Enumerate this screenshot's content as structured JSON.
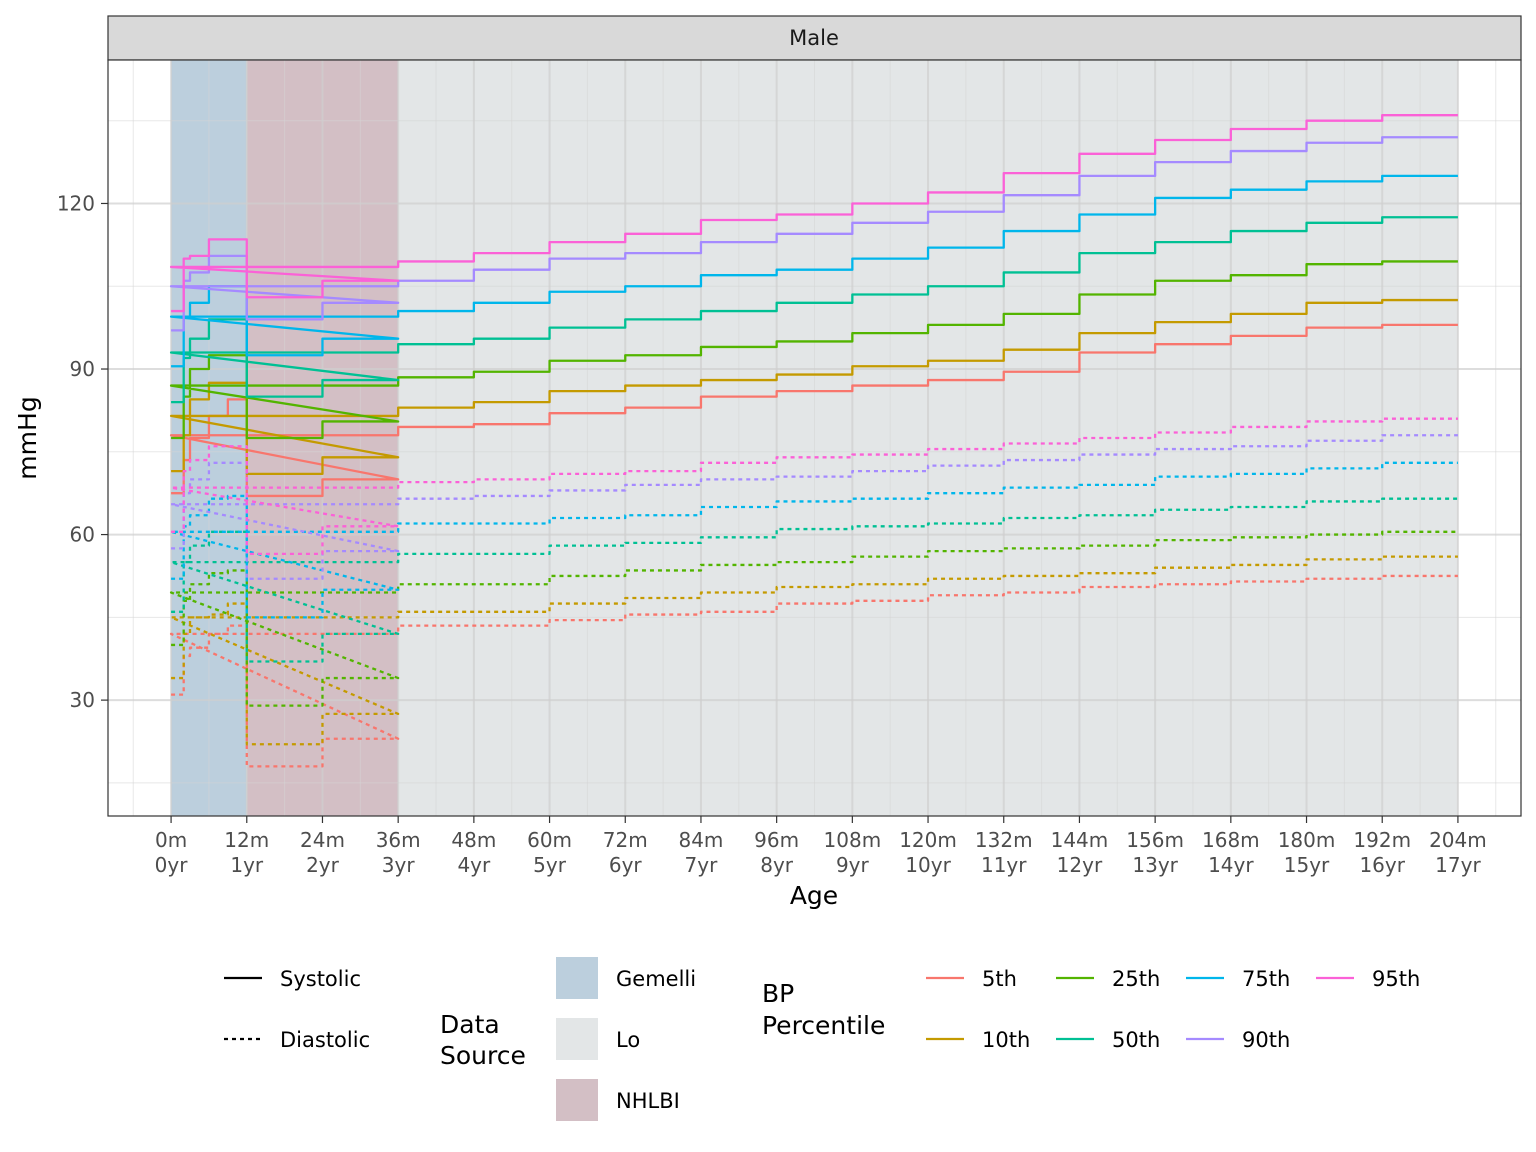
{
  "chart_data": {
    "type": "line",
    "facet": "Male",
    "xlabel": "Age",
    "ylabel": "mmHg",
    "x_unit": "months",
    "xlim": [
      -10,
      214
    ],
    "ylim": [
      9,
      146
    ],
    "y_ticks": [
      30,
      60,
      90,
      120
    ],
    "x_ticks": [
      {
        "value": 0,
        "line1": "0m",
        "line2": "0yr"
      },
      {
        "value": 12,
        "line1": "12m",
        "line2": "1yr"
      },
      {
        "value": 24,
        "line1": "24m",
        "line2": "2yr"
      },
      {
        "value": 36,
        "line1": "36m",
        "line2": "3yr"
      },
      {
        "value": 48,
        "line1": "48m",
        "line2": "4yr"
      },
      {
        "value": 60,
        "line1": "60m",
        "line2": "5yr"
      },
      {
        "value": 72,
        "line1": "72m",
        "line2": "6yr"
      },
      {
        "value": 84,
        "line1": "84m",
        "line2": "7yr"
      },
      {
        "value": 96,
        "line1": "96m",
        "line2": "8yr"
      },
      {
        "value": 108,
        "line1": "108m",
        "line2": "9yr"
      },
      {
        "value": 120,
        "line1": "120m",
        "line2": "10yr"
      },
      {
        "value": 132,
        "line1": "132m",
        "line2": "11yr"
      },
      {
        "value": 144,
        "line1": "144m",
        "line2": "12yr"
      },
      {
        "value": 156,
        "line1": "156m",
        "line2": "13yr"
      },
      {
        "value": 168,
        "line1": "168m",
        "line2": "14yr"
      },
      {
        "value": 180,
        "line1": "180m",
        "line2": "15yr"
      },
      {
        "value": 192,
        "line1": "192m",
        "line2": "16yr"
      },
      {
        "value": 204,
        "line1": "204m",
        "line2": "17yr"
      }
    ],
    "grid": true,
    "data_sources": [
      {
        "name": "Gemelli",
        "color": "#bccfdd",
        "from": 0,
        "to": 12
      },
      {
        "name": "NHLBI",
        "color": "#d3bfc5",
        "from": 12,
        "to": 36
      },
      {
        "name": "Lo",
        "color": "#e3e6e7",
        "from": 36,
        "to": 204
      }
    ],
    "step_starts": [
      0,
      36,
      48,
      60,
      72,
      84,
      96,
      108,
      120,
      132,
      144,
      156,
      168,
      180,
      192,
      204
    ],
    "gemelli_steps": [
      0,
      2,
      3,
      6,
      9,
      12
    ],
    "series": [
      {
        "percentile": "5th",
        "type": "Systolic",
        "color": "#f8766d",
        "gemelli": [
          67.5,
          73.5,
          77.5,
          81.5,
          84.5
        ],
        "nhlbi": [
          67,
          70
        ],
        "lo": [
          78,
          79.5,
          80,
          82,
          83,
          85,
          86,
          87,
          88,
          89.5,
          93,
          94.5,
          96,
          97.5,
          98
        ]
      },
      {
        "percentile": "10th",
        "type": "Systolic",
        "color": "#c49a00",
        "gemelli": [
          71.5,
          78,
          84.5,
          87.5,
          87.5
        ],
        "nhlbi": [
          71,
          74
        ],
        "lo": [
          81.5,
          83,
          84,
          86,
          87,
          88,
          89,
          90.5,
          91.5,
          93.5,
          96.5,
          98.5,
          100,
          102,
          102.5
        ]
      },
      {
        "percentile": "25th",
        "type": "Systolic",
        "color": "#53b400",
        "gemelli": [
          77.5,
          85,
          90,
          92.5,
          92.5
        ],
        "nhlbi": [
          77.5,
          80.5
        ],
        "lo": [
          87,
          88.5,
          89.5,
          91.5,
          92.5,
          94,
          95,
          96.5,
          98,
          100,
          103.5,
          106,
          107,
          109,
          109.5
        ]
      },
      {
        "percentile": "50th",
        "type": "Systolic",
        "color": "#00c094",
        "gemelli": [
          84,
          92,
          95.5,
          99,
          99
        ],
        "nhlbi": [
          85,
          88
        ],
        "lo": [
          93,
          94.5,
          95.5,
          97.5,
          99,
          100.5,
          102,
          103.5,
          105,
          107.5,
          111,
          113,
          115,
          116.5,
          117.5
        ]
      },
      {
        "percentile": "75th",
        "type": "Systolic",
        "color": "#00b6eb",
        "gemelli": [
          90.5,
          99.5,
          102,
          105,
          105
        ],
        "nhlbi": [
          92.5,
          95.5
        ],
        "lo": [
          99.5,
          100.5,
          102,
          104,
          105,
          107,
          108,
          110,
          112,
          115,
          118,
          121,
          122.5,
          124,
          125
        ]
      },
      {
        "percentile": "90th",
        "type": "Systolic",
        "color": "#a58aff",
        "gemelli": [
          97,
          106,
          107.5,
          110.5,
          110.5
        ],
        "nhlbi": [
          99,
          102
        ],
        "lo": [
          105,
          106,
          108,
          110,
          111,
          113,
          114.5,
          116.5,
          118.5,
          121.5,
          125,
          127.5,
          129.5,
          131,
          132
        ]
      },
      {
        "percentile": "95th",
        "type": "Systolic",
        "color": "#fb61d7",
        "gemelli": [
          100.5,
          110,
          110.5,
          113.5,
          113.5
        ],
        "nhlbi": [
          103,
          106
        ],
        "lo": [
          108.5,
          109.5,
          111,
          113,
          114.5,
          117,
          118,
          120,
          122,
          125.5,
          129,
          131.5,
          133.5,
          135,
          136
        ]
      },
      {
        "percentile": "5th",
        "type": "Diastolic",
        "color": "#f8766d",
        "gemelli": [
          31,
          38,
          39.5,
          42,
          43.5
        ],
        "nhlbi": [
          18,
          23
        ],
        "lo": [
          42,
          43.5,
          43.5,
          44.5,
          45.5,
          46,
          47.5,
          48,
          49,
          49.5,
          50.5,
          51,
          51.5,
          52,
          52.5
        ]
      },
      {
        "percentile": "10th",
        "type": "Diastolic",
        "color": "#c49a00",
        "gemelli": [
          34,
          42,
          45,
          45.5,
          47.5
        ],
        "nhlbi": [
          22,
          27.5
        ],
        "lo": [
          45,
          46,
          46,
          47.5,
          48.5,
          49.5,
          50.5,
          51,
          52,
          52.5,
          53,
          54,
          54.5,
          55.5,
          56
        ]
      },
      {
        "percentile": "25th",
        "type": "Diastolic",
        "color": "#53b400",
        "gemelli": [
          40,
          48,
          51,
          53,
          53.5
        ],
        "nhlbi": [
          29,
          34
        ],
        "lo": [
          49.5,
          51,
          51,
          52.5,
          53.5,
          54.5,
          55,
          56,
          57,
          57.5,
          58,
          59,
          59.5,
          60,
          60.5
        ]
      },
      {
        "percentile": "50th",
        "type": "Diastolic",
        "color": "#00c094",
        "gemelli": [
          46,
          55,
          58,
          60.5,
          60.5
        ],
        "nhlbi": [
          37,
          42
        ],
        "lo": [
          55,
          56.5,
          56.5,
          58,
          58.5,
          59.5,
          61,
          61.5,
          62,
          63,
          63.5,
          64.5,
          65,
          66,
          66.5
        ]
      },
      {
        "percentile": "75th",
        "type": "Diastolic",
        "color": "#00b6eb",
        "gemelli": [
          52,
          61.5,
          63.5,
          66.5,
          67
        ],
        "nhlbi": [
          45,
          50
        ],
        "lo": [
          60.5,
          62,
          62,
          63,
          63.5,
          65,
          66,
          66.5,
          67.5,
          68.5,
          69,
          70.5,
          71,
          72,
          73
        ]
      },
      {
        "percentile": "90th",
        "type": "Diastolic",
        "color": "#a58aff",
        "gemelli": [
          57.5,
          67.5,
          70,
          73,
          73
        ],
        "nhlbi": [
          52,
          57
        ],
        "lo": [
          65.5,
          66.5,
          67,
          68,
          69,
          70,
          70.5,
          71.5,
          72.5,
          73.5,
          74.5,
          75.5,
          76,
          77,
          78
        ]
      },
      {
        "percentile": "95th",
        "type": "Diastolic",
        "color": "#fb61d7",
        "gemelli": [
          60.5,
          71.5,
          73.5,
          76,
          76
        ],
        "nhlbi": [
          56.5,
          61.5
        ],
        "lo": [
          68.5,
          69.5,
          70,
          71,
          71.5,
          73,
          74,
          74.5,
          75.5,
          76.5,
          77.5,
          78.5,
          79.5,
          80.5,
          81
        ]
      }
    ],
    "legend": {
      "placement": "bottom",
      "linetype": [
        {
          "label": "Systolic",
          "dash": "solid"
        },
        {
          "label": "Diastolic",
          "dash": "dashed"
        }
      ],
      "source_title_1": "Data",
      "source_title_2": "Source",
      "sources": [
        {
          "label": "Gemelli",
          "color": "#bccfdd"
        },
        {
          "label": "Lo",
          "color": "#e3e6e7"
        },
        {
          "label": "NHLBI",
          "color": "#d3bfc5"
        }
      ],
      "pct_title_1": "BP",
      "pct_title_2": "Percentile",
      "percentiles": [
        {
          "label": "5th",
          "color": "#f8766d"
        },
        {
          "label": "10th",
          "color": "#c49a00"
        },
        {
          "label": "25th",
          "color": "#53b400"
        },
        {
          "label": "50th",
          "color": "#00c094"
        },
        {
          "label": "75th",
          "color": "#00b6eb"
        },
        {
          "label": "90th",
          "color": "#a58aff"
        },
        {
          "label": "95th",
          "color": "#fb61d7"
        }
      ]
    }
  }
}
